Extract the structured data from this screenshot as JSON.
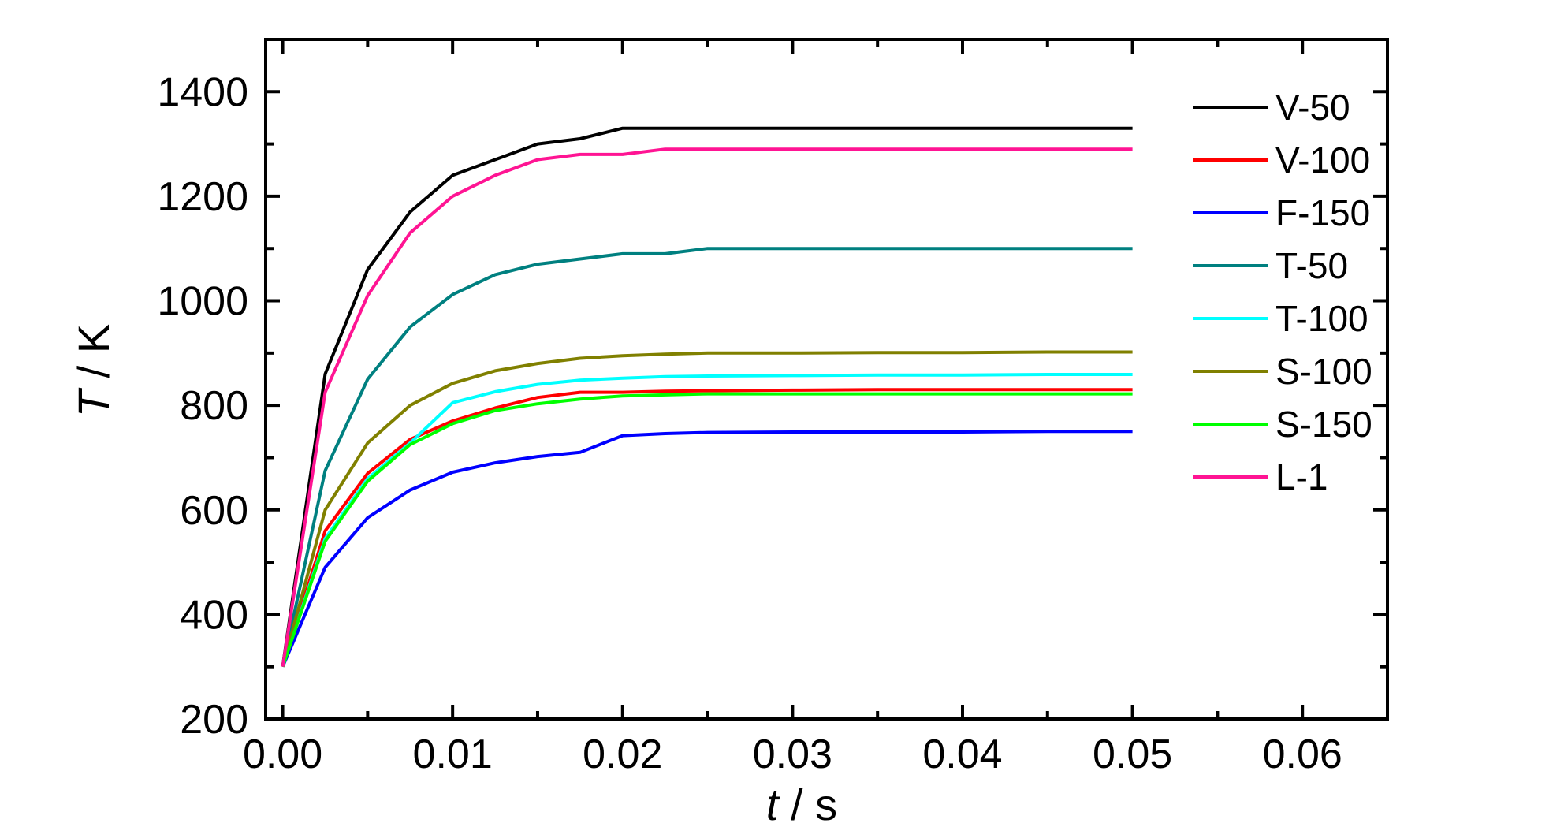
{
  "chart_data": {
    "type": "line",
    "xlabel_italic": "t",
    "xlabel_rest": " / s",
    "ylabel_italic": "T",
    "ylabel_rest": " / K",
    "xlim": [
      -0.001,
      0.065
    ],
    "ylim": [
      200,
      1500
    ],
    "xticks": [
      0.0,
      0.01,
      0.02,
      0.03,
      0.04,
      0.05,
      0.06
    ],
    "xtick_labels": [
      "0.00",
      "0.01",
      "0.02",
      "0.03",
      "0.04",
      "0.05",
      "0.06"
    ],
    "yticks": [
      200,
      400,
      600,
      800,
      1000,
      1200,
      1400
    ],
    "ytick_labels": [
      "200",
      "400",
      "600",
      "800",
      "1000",
      "1200",
      "1400"
    ],
    "grid": false,
    "legend_position": "top-right",
    "x": [
      0,
      0.0025,
      0.005,
      0.0075,
      0.01,
      0.0125,
      0.015,
      0.0175,
      0.02,
      0.0225,
      0.025,
      0.03,
      0.035,
      0.04,
      0.045,
      0.05
    ],
    "series": [
      {
        "name": "V-50",
        "color": "#000000",
        "values": [
          300,
          860,
          1060,
          1170,
          1240,
          1270,
          1300,
          1310,
          1330,
          1330,
          1330,
          1330,
          1330,
          1330,
          1330,
          1330
        ]
      },
      {
        "name": "V-100",
        "color": "#ff0000",
        "values": [
          300,
          560,
          670,
          735,
          770,
          795,
          815,
          825,
          825,
          827,
          828,
          829,
          830,
          830,
          830,
          830
        ]
      },
      {
        "name": "F-150",
        "color": "#0000ff",
        "values": [
          300,
          490,
          585,
          638,
          672,
          690,
          702,
          710,
          742,
          746,
          748,
          749,
          749,
          749,
          750,
          750
        ]
      },
      {
        "name": "T-50",
        "color": "#008080",
        "values": [
          300,
          675,
          850,
          950,
          1012,
          1050,
          1070,
          1080,
          1090,
          1090,
          1100,
          1100,
          1100,
          1100,
          1100,
          1100
        ]
      },
      {
        "name": "T-100",
        "color": "#00ffff",
        "values": [
          300,
          545,
          660,
          728,
          805,
          826,
          840,
          848,
          852,
          855,
          856,
          857,
          858,
          858,
          859,
          859
        ]
      },
      {
        "name": "S-100",
        "color": "#808000",
        "values": [
          300,
          600,
          728,
          800,
          842,
          866,
          880,
          890,
          895,
          898,
          900,
          900,
          901,
          901,
          902,
          902
        ]
      },
      {
        "name": "S-150",
        "color": "#00ff00",
        "values": [
          300,
          540,
          655,
          725,
          765,
          790,
          803,
          812,
          818,
          820,
          822,
          822,
          822,
          822,
          822,
          822
        ]
      },
      {
        "name": "L-1",
        "color": "#ff1493",
        "values": [
          300,
          825,
          1010,
          1130,
          1200,
          1240,
          1270,
          1280,
          1280,
          1290,
          1290,
          1290,
          1290,
          1290,
          1290,
          1290
        ]
      }
    ]
  }
}
